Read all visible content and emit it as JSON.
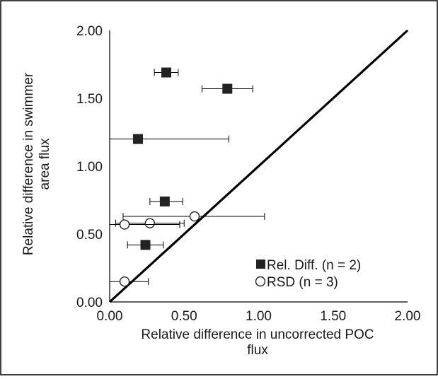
{
  "chart_data": {
    "type": "scatter",
    "xlabel_lines": [
      "Relative difference in uncorrected POC",
      "flux"
    ],
    "ylabel_lines": [
      "Relative difference in swimmer",
      "area flux"
    ],
    "xlim": [
      0,
      2
    ],
    "ylim": [
      0,
      2
    ],
    "x_ticks": [
      "0.00",
      "0.50",
      "1.00",
      "1.50",
      "2.00"
    ],
    "y_ticks": [
      "0.00",
      "0.50",
      "1.00",
      "1.50",
      "2.00"
    ],
    "grid": false,
    "legend_position": "bottom-right",
    "reference_line": {
      "from": [
        0,
        0
      ],
      "to": [
        2,
        2
      ]
    },
    "series": [
      {
        "name": "Rel. Diff. (n = 2)",
        "marker": "filled-square",
        "color": "#222222",
        "points": [
          {
            "x": 0.38,
            "y": 1.69,
            "xerr_low": 0.3,
            "xerr_high": 0.46
          },
          {
            "x": 0.79,
            "y": 1.57,
            "xerr_low": 0.62,
            "xerr_high": 0.96
          },
          {
            "x": 0.19,
            "y": 1.2,
            "xerr_low": 0.0,
            "xerr_high": 0.8
          },
          {
            "x": 0.37,
            "y": 0.74,
            "xerr_low": 0.27,
            "xerr_high": 0.49
          },
          {
            "x": 0.24,
            "y": 0.42,
            "xerr_low": 0.12,
            "xerr_high": 0.36
          }
        ]
      },
      {
        "name": "RSD (n = 3)",
        "marker": "open-circle",
        "color": "#222222",
        "points": [
          {
            "x": 0.57,
            "y": 0.63,
            "xerr_low": 0.09,
            "xerr_high": 1.04
          },
          {
            "x": 0.27,
            "y": 0.58,
            "xerr_low": 0.04,
            "xerr_high": 0.5
          },
          {
            "x": 0.1,
            "y": 0.57,
            "xerr_low": 0.0,
            "xerr_high": 0.47
          },
          {
            "x": 0.1,
            "y": 0.15,
            "xerr_low": 0.0,
            "xerr_high": 0.26
          }
        ]
      }
    ]
  }
}
